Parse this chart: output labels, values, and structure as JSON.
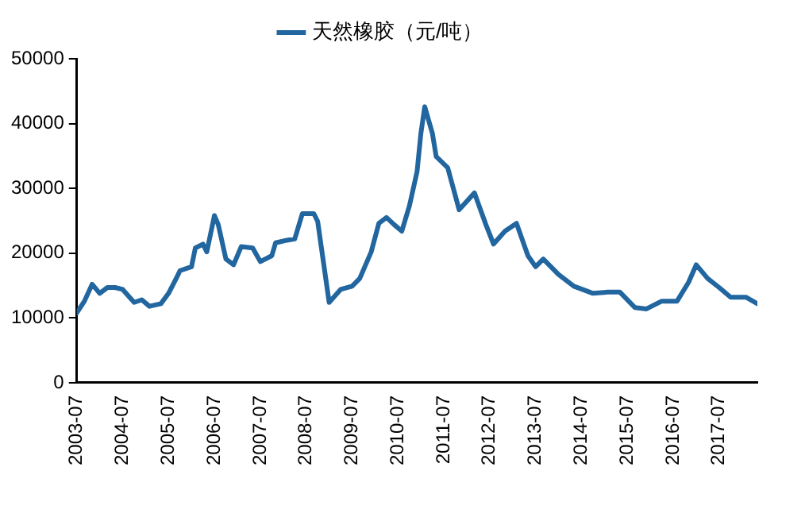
{
  "chart_data": {
    "type": "line",
    "legend": "top",
    "grid": false,
    "marker": "none",
    "line_style": "solid",
    "x": [
      "2003-07",
      "2003-09",
      "2003-11",
      "2004-01",
      "2004-03",
      "2004-05",
      "2004-07",
      "2004-10",
      "2004-12",
      "2005-02",
      "2005-05",
      "2005-07",
      "2005-09",
      "2005-10",
      "2006-01",
      "2006-02",
      "2006-04",
      "2006-05",
      "2006-07",
      "2006-08",
      "2006-10",
      "2006-12",
      "2007-02",
      "2007-05",
      "2007-07",
      "2007-10",
      "2007-11",
      "2008-02",
      "2008-04",
      "2008-06",
      "2008-09",
      "2008-10",
      "2009-01",
      "2009-04",
      "2009-07",
      "2009-09",
      "2009-12",
      "2010-02",
      "2010-04",
      "2010-06",
      "2010-08",
      "2010-10",
      "2010-12",
      "2011-01",
      "2011-02",
      "2011-04",
      "2011-05",
      "2011-08",
      "2011-11",
      "2012-03",
      "2012-06",
      "2012-08",
      "2012-11",
      "2013-02",
      "2013-05",
      "2013-07",
      "2013-09",
      "2014-01",
      "2014-05",
      "2014-10",
      "2015-02",
      "2015-05",
      "2015-09",
      "2015-12",
      "2016-04",
      "2016-08",
      "2016-11",
      "2017-01",
      "2017-04",
      "2017-07",
      "2017-10",
      "2018-02",
      "2018-05"
    ],
    "series": [
      {
        "name": "天然橡胶（元/吨）",
        "color": "#2266a0",
        "values": [
          10800,
          12600,
          15200,
          13800,
          14700,
          14700,
          14400,
          12400,
          12800,
          11800,
          12200,
          13800,
          16100,
          17300,
          17900,
          20800,
          21400,
          20200,
          25800,
          24400,
          19100,
          18200,
          21000,
          20800,
          18700,
          19600,
          21600,
          22000,
          22200,
          26100,
          26100,
          24900,
          12400,
          14400,
          14900,
          16100,
          20200,
          24600,
          25500,
          24400,
          23400,
          27300,
          32600,
          38500,
          42600,
          38500,
          34900,
          33200,
          26700,
          29300,
          24400,
          21400,
          23400,
          24600,
          19600,
          17900,
          19100,
          16700,
          14900,
          13800,
          14000,
          14000,
          11600,
          11400,
          12600,
          12600,
          15500,
          18200,
          16100,
          14700,
          13200,
          13200,
          12200
        ]
      }
    ],
    "ylim": [
      0,
      50000
    ],
    "yticks": [
      0,
      10000,
      20000,
      30000,
      40000,
      50000
    ],
    "xlim": [
      "2003-07",
      "2018-05"
    ],
    "xticks": [
      "2003-07",
      "2004-07",
      "2005-07",
      "2006-07",
      "2007-07",
      "2008-07",
      "2009-07",
      "2010-07",
      "2011-07",
      "2012-07",
      "2013-07",
      "2014-07",
      "2015-07",
      "2016-07",
      "2017-07"
    ]
  }
}
